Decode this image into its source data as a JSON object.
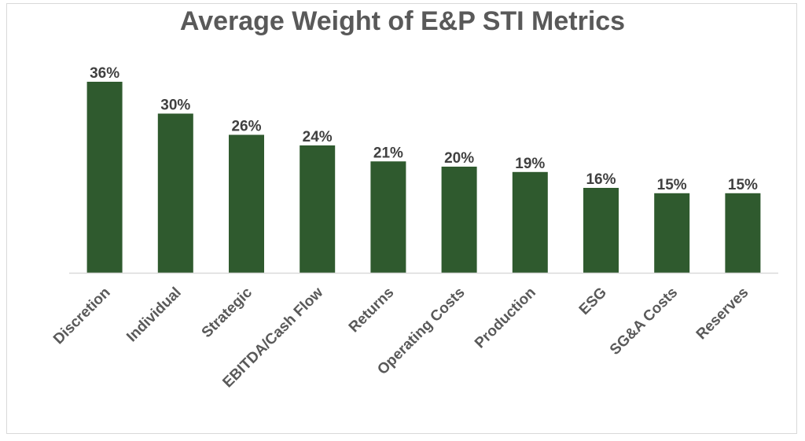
{
  "chart_data": {
    "type": "bar",
    "title": "Average Weight of E&P STI Metrics",
    "categories": [
      "Discretion",
      "Individual",
      "Strategic",
      "EBITDA/Cash Flow",
      "Returns",
      "Operating Costs",
      "Production",
      "ESG",
      "SG&A Costs",
      "Reserves"
    ],
    "values": [
      36,
      30,
      26,
      24,
      21,
      20,
      19,
      16,
      15,
      15
    ],
    "data_labels": [
      "36%",
      "30%",
      "26%",
      "24%",
      "21%",
      "20%",
      "19%",
      "16%",
      "15%",
      "15%"
    ],
    "xlabel": "",
    "ylabel": "",
    "ylim": [
      0,
      36
    ],
    "grid": false,
    "legend": "none",
    "bar_color": "#2f5a2e",
    "axis_color": "#d9d9d9"
  }
}
